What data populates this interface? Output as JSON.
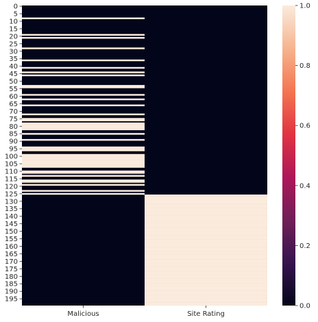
{
  "chart_data": {
    "type": "heatmap",
    "title": "",
    "xlabel": "",
    "ylabel": "",
    "columns": [
      "Malicious",
      "Site Rating"
    ],
    "row_count": 200,
    "row_tick_step": 5,
    "row_tick_labels": [
      "0",
      "5",
      "10",
      "15",
      "20",
      "25",
      "30",
      "35",
      "40",
      "45",
      "50",
      "55",
      "60",
      "65",
      "70",
      "75",
      "80",
      "85",
      "90",
      "95",
      "100",
      "105",
      "110",
      "115",
      "120",
      "125",
      "130",
      "135",
      "140",
      "145",
      "150",
      "155",
      "160",
      "165",
      "170",
      "175",
      "180",
      "185",
      "190",
      "195"
    ],
    "value_range": [
      0,
      1
    ],
    "colorbar": {
      "ticks": [
        0.0,
        0.2,
        0.4,
        0.6,
        0.8,
        1.0
      ],
      "tick_labels": [
        "0.0",
        "0.2",
        "0.4",
        "0.6",
        "0.8",
        "1.0"
      ]
    },
    "colormap": [
      "#03051a",
      "#36134e",
      "#701f57",
      "#ad1759",
      "#e13342",
      "#f37651",
      "#f6b48f",
      "#faebdd"
    ],
    "series": [
      {
        "name": "Malicious",
        "ones_rows": [
          8,
          19,
          21,
          28,
          36,
          41,
          44,
          46,
          53,
          54,
          59,
          62,
          66,
          72,
          75,
          76,
          78,
          79,
          80,
          81,
          82,
          85,
          89,
          94,
          95,
          96,
          99,
          100,
          101,
          102,
          103,
          104,
          105,
          106,
          107,
          110,
          111,
          113,
          116,
          117,
          119,
          123,
          125
        ]
      },
      {
        "name": "Site Rating",
        "ones_range": [
          126,
          199
        ]
      }
    ]
  }
}
